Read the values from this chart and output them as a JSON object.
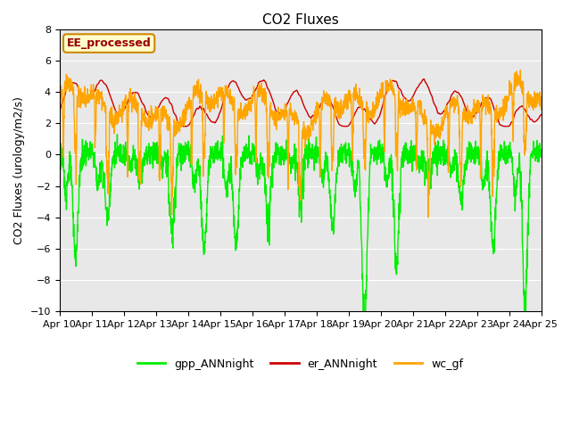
{
  "title": "CO2 Fluxes",
  "ylabel": "CO2 Fluxes (urology/m2/s)",
  "ylim": [
    -10,
    8
  ],
  "yticks": [
    -10,
    -8,
    -6,
    -4,
    -2,
    0,
    2,
    4,
    6,
    8
  ],
  "xtick_labels": [
    "Apr 10",
    "Apr 11",
    "Apr 12",
    "Apr 13",
    "Apr 14",
    "Apr 15",
    "Apr 16",
    "Apr 17",
    "Apr 18",
    "Apr 19",
    "Apr 20",
    "Apr 21",
    "Apr 22",
    "Apr 23",
    "Apr 24",
    "Apr 25"
  ],
  "legend_entries": [
    "gpp_ANNnight",
    "er_ANNnight",
    "wc_gf"
  ],
  "line_colors": [
    "#00ee00",
    "#cc0000",
    "#ffa500"
  ],
  "watermark_text": "EE_processed",
  "watermark_bg": "#ffffcc",
  "watermark_border": "#cc8800",
  "watermark_fg": "#990000",
  "bg_color": "#e8e8e8",
  "plot_bg": "#d8d8d8",
  "title_fontsize": 11,
  "label_fontsize": 9,
  "tick_fontsize": 8,
  "legend_fontsize": 9,
  "line_width": 1.0
}
